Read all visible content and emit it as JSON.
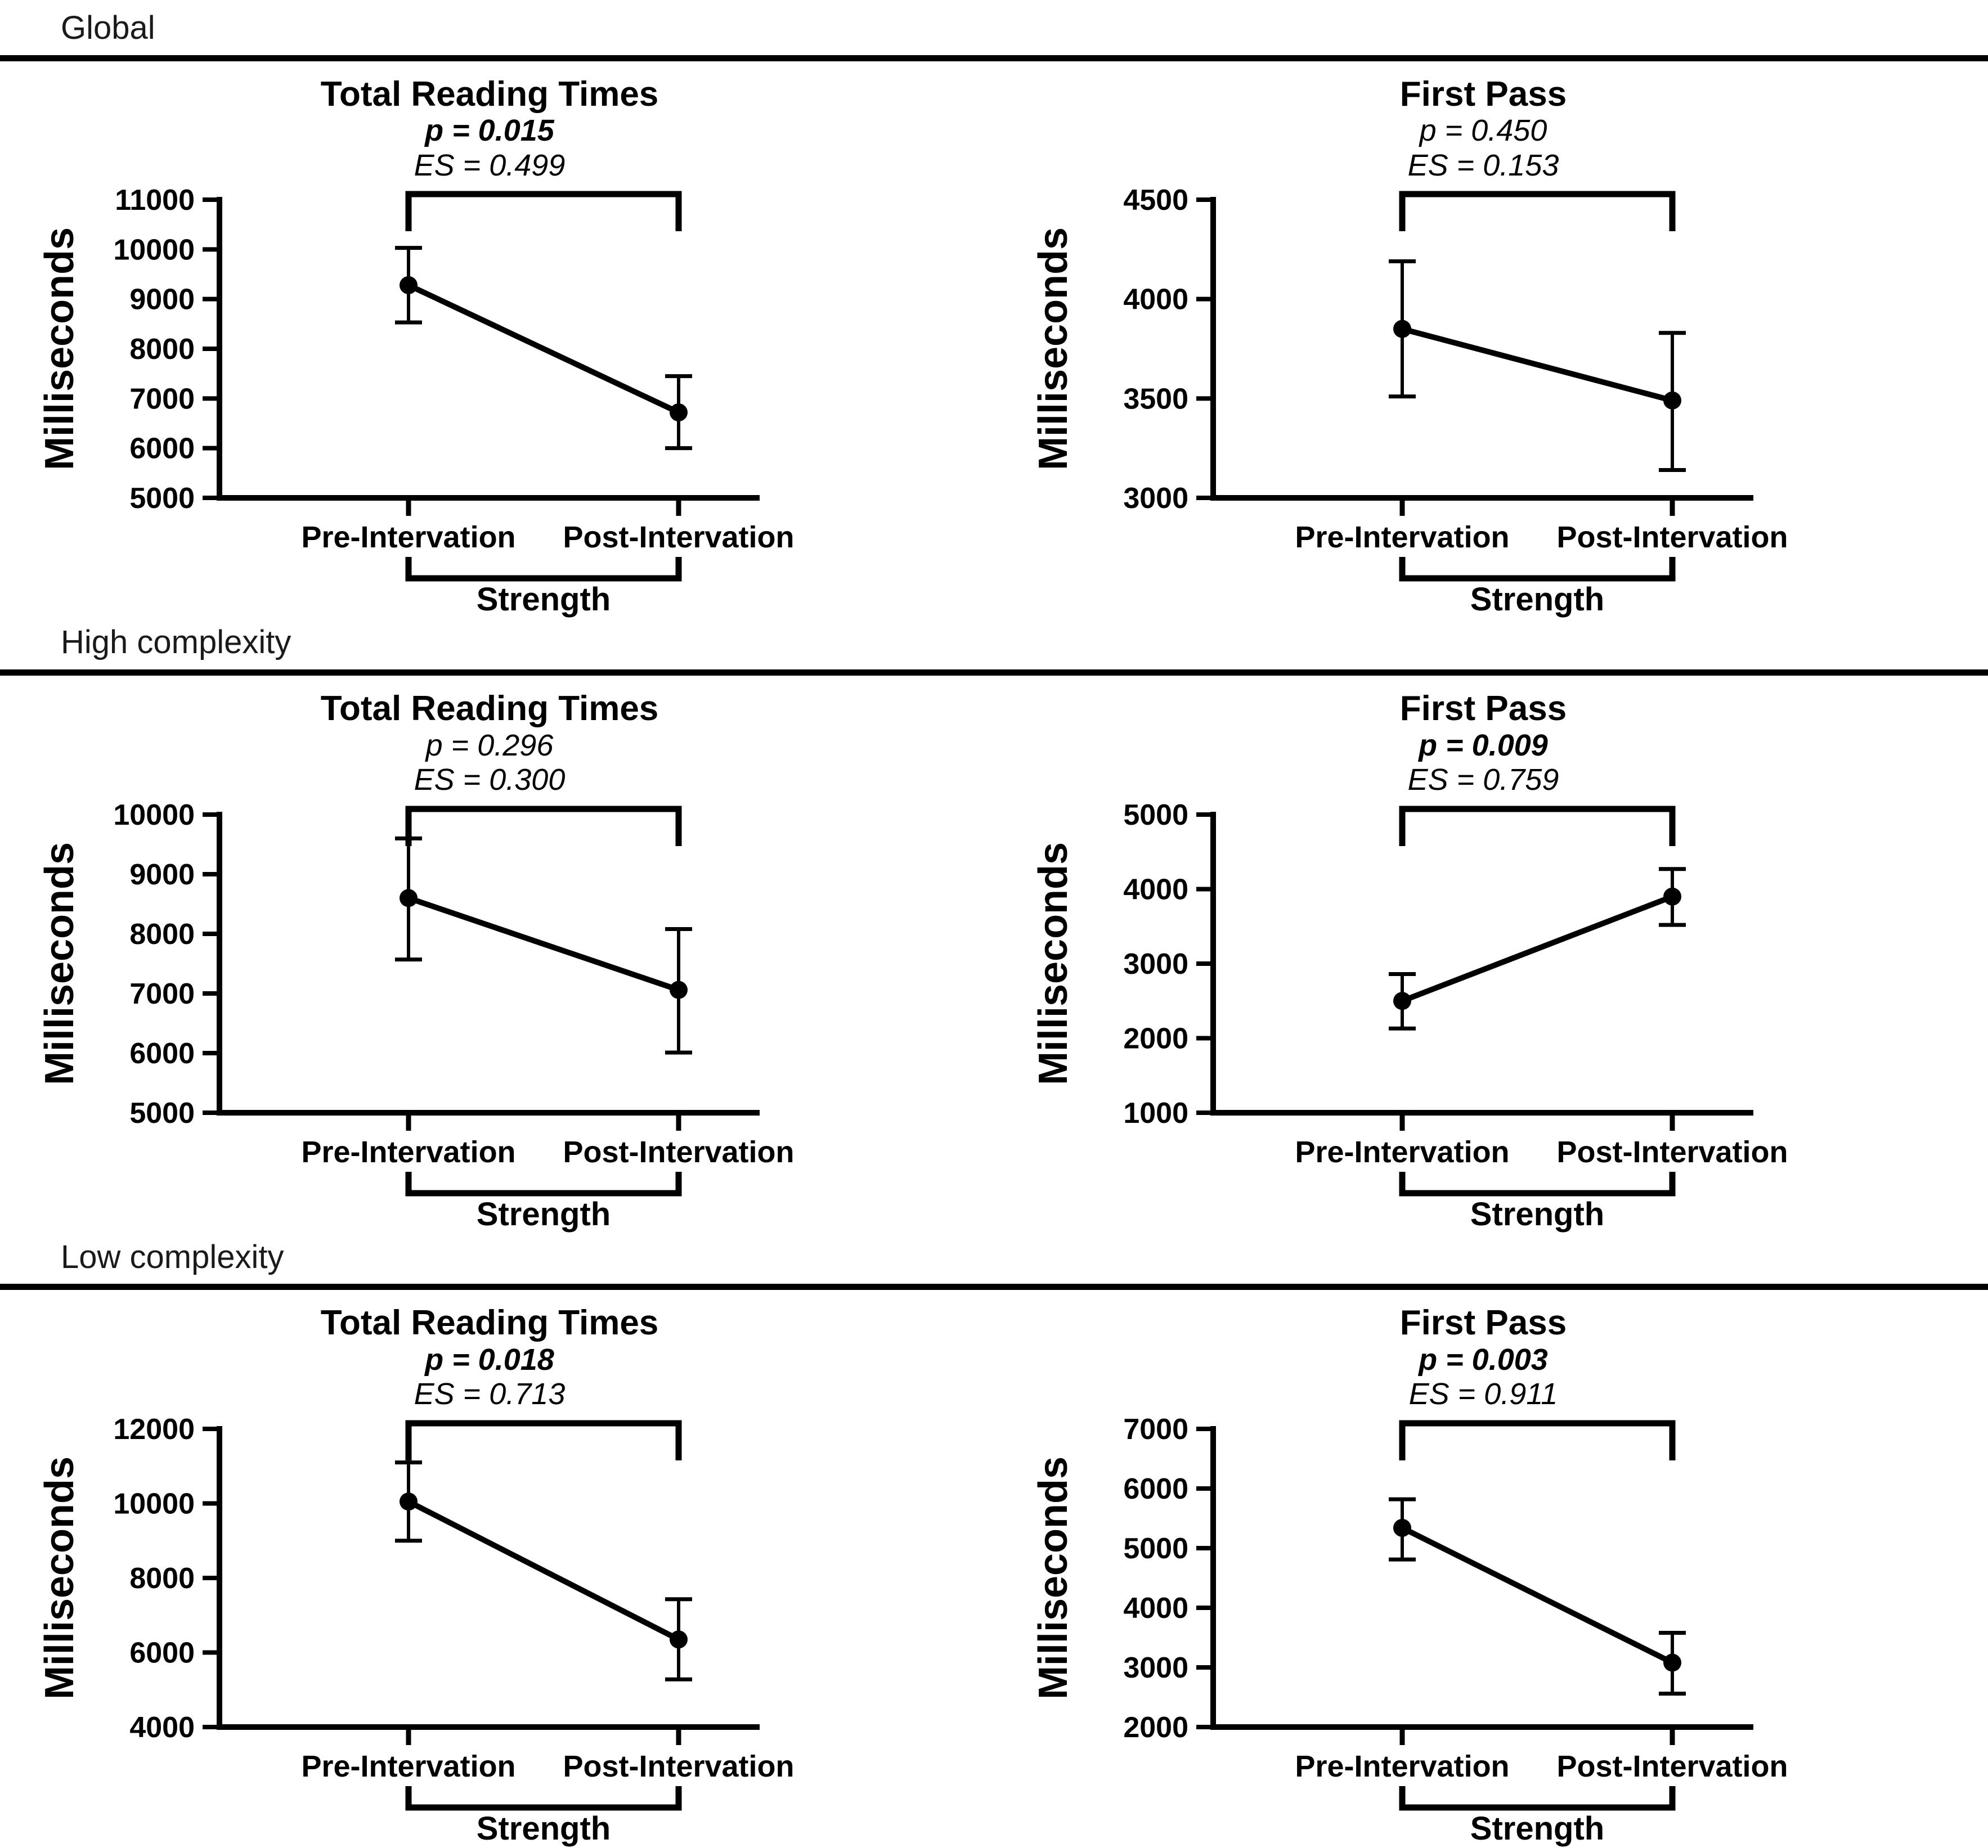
{
  "colors": {
    "ink": "#000000",
    "background": "#ffffff"
  },
  "chart_data": [
    {
      "type": "line",
      "section": "Global",
      "title": "Total Reading Times",
      "stats": {
        "p": "p = 0.015",
        "p_bold": true,
        "es": "ES = 0.499"
      },
      "categories": [
        "Pre-Intervation",
        "Post-Intervation"
      ],
      "values": [
        9280,
        6720
      ],
      "error_low": [
        8530,
        6000
      ],
      "error_high": [
        10030,
        7450
      ],
      "ylabel": "Milliseconds",
      "ylim": [
        5000,
        11000
      ],
      "ystep": 1000,
      "group_label": "Strength",
      "grid": false,
      "legend": "none"
    },
    {
      "type": "line",
      "section": "Global",
      "title": "First Pass",
      "stats": {
        "p": "p = 0.450",
        "p_bold": false,
        "es": "ES = 0.153"
      },
      "categories": [
        "Pre-Intervation",
        "Post-Intervation"
      ],
      "values": [
        3850,
        3490
      ],
      "error_low": [
        3510,
        3140
      ],
      "error_high": [
        4190,
        3830
      ],
      "ylabel": "Milliseconds",
      "ylim": [
        3000,
        4500
      ],
      "ystep": 500,
      "group_label": "Strength",
      "grid": false,
      "legend": "none"
    },
    {
      "type": "line",
      "section": "High complexity",
      "title": "Total Reading Times",
      "stats": {
        "p": "p = 0.296",
        "p_bold": false,
        "es": "ES = 0.300"
      },
      "categories": [
        "Pre-Intervation",
        "Post-Intervation"
      ],
      "values": [
        8600,
        7060
      ],
      "error_low": [
        7570,
        6010
      ],
      "error_high": [
        9600,
        8080
      ],
      "ylabel": "Milliseconds",
      "ylim": [
        5000,
        10000
      ],
      "ystep": 1000,
      "group_label": "Strength",
      "grid": false,
      "legend": "none"
    },
    {
      "type": "line",
      "section": "High complexity",
      "title": "First Pass",
      "stats": {
        "p": "p = 0.009",
        "p_bold": true,
        "es": "ES = 0.759"
      },
      "categories": [
        "Pre-Intervation",
        "Post-Intervation"
      ],
      "values": [
        2500,
        3900
      ],
      "error_low": [
        2130,
        3520
      ],
      "error_high": [
        2860,
        4270
      ],
      "ylabel": "Milliseconds",
      "ylim": [
        1000,
        5000
      ],
      "ystep": 1000,
      "group_label": "Strength",
      "grid": false,
      "legend": "none"
    },
    {
      "type": "line",
      "section": "Low complexity",
      "title": "Total Reading Times",
      "stats": {
        "p": "p = 0.018",
        "p_bold": true,
        "es": "ES = 0.713"
      },
      "categories": [
        "Pre-Intervation",
        "Post-Intervation"
      ],
      "values": [
        10050,
        6350
      ],
      "error_low": [
        9000,
        5280
      ],
      "error_high": [
        11100,
        7430
      ],
      "ylabel": "Milliseconds",
      "ylim": [
        4000,
        12000
      ],
      "ystep": 2000,
      "group_label": "Strength",
      "grid": false,
      "legend": "none"
    },
    {
      "type": "line",
      "section": "Low complexity",
      "title": "First Pass",
      "stats": {
        "p": "p = 0.003",
        "p_bold": true,
        "es": "ES = 0.911"
      },
      "categories": [
        "Pre-Intervation",
        "Post-Intervation"
      ],
      "values": [
        5340,
        3080
      ],
      "error_low": [
        4810,
        2560
      ],
      "error_high": [
        5820,
        3580
      ],
      "ylabel": "Milliseconds",
      "ylim": [
        2000,
        7000
      ],
      "ystep": 1000,
      "group_label": "Strength",
      "grid": false,
      "legend": "none"
    }
  ]
}
